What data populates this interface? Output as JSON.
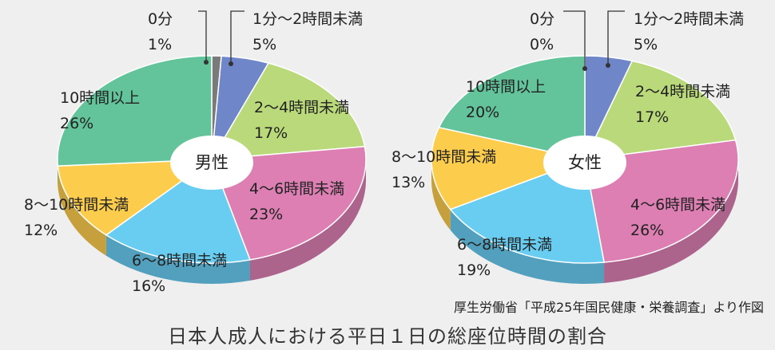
{
  "chart_data": [
    {
      "type": "pie",
      "title": "男性",
      "categories": [
        "0分",
        "1分〜2時間未満",
        "2〜4時間未満",
        "4〜6時間未満",
        "6〜8時間未満",
        "8〜10時間未満",
        "10時間以上"
      ],
      "values": [
        1,
        5,
        17,
        23,
        16,
        12,
        26
      ],
      "value_labels": [
        "1%",
        "5%",
        "17%",
        "23%",
        "16%",
        "12%",
        "26%"
      ],
      "colors": [
        "#7a7a7a",
        "#6f86c8",
        "#b9d97a",
        "#dd7fb3",
        "#69cdf2",
        "#fccd4d",
        "#63c49b"
      ]
    },
    {
      "type": "pie",
      "title": "女性",
      "categories": [
        "0分",
        "1分〜2時間未満",
        "2〜4時間未満",
        "4〜6時間未満",
        "6〜8時間未満",
        "8〜10時間未満",
        "10時間以上"
      ],
      "values": [
        0,
        5,
        17,
        26,
        19,
        13,
        20
      ],
      "value_labels": [
        "0%",
        "5%",
        "17%",
        "26%",
        "19%",
        "13%",
        "20%"
      ],
      "colors": [
        "#7a7a7a",
        "#6f86c8",
        "#b9d97a",
        "#dd7fb3",
        "#69cdf2",
        "#fccd4d",
        "#63c49b"
      ]
    }
  ],
  "source_note": "厚生労働省「平成25年国民健康・栄養調査」より作図",
  "caption": "日本人成人における平日１日の総座位時間の割合"
}
